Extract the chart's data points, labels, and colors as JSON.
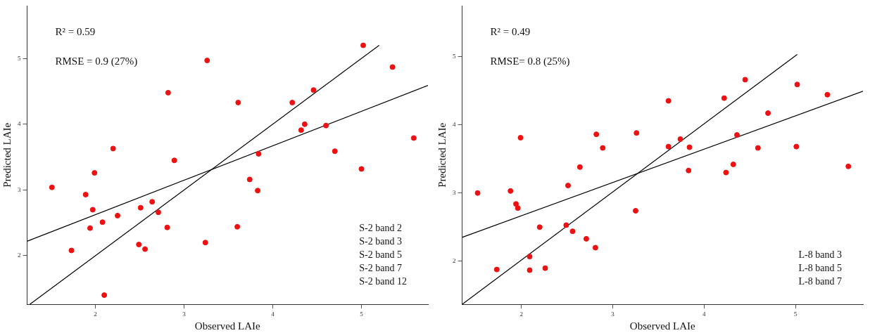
{
  "chart_data": [
    {
      "type": "scatter",
      "xlabel": "Observed LAIe",
      "ylabel": "Predicted LAIe",
      "xlim": [
        1.23,
        5.75
      ],
      "ylim": [
        1.26,
        5.8
      ],
      "xticks": [
        2,
        3,
        4,
        5
      ],
      "yticks": [
        2,
        3,
        4,
        5
      ],
      "grid": false,
      "legend": false,
      "annotations": [
        "R² = 0.59",
        "RMSE = 0.9 (27%)",
        "S-2 band 2",
        "S-2 band 3",
        "S-2 band 5",
        "S-2 band 7",
        "S-2 band 12"
      ],
      "series": [
        {
          "type": "scatter",
          "marker": "circle",
          "color": "#ee1111",
          "x": [
            1.51,
            1.73,
            1.89,
            1.94,
            1.97,
            1.99,
            2.08,
            2.1,
            2.2,
            2.25,
            2.49,
            2.51,
            2.56,
            2.64,
            2.71,
            2.81,
            2.82,
            2.89,
            3.24,
            3.26,
            3.6,
            3.61,
            3.74,
            3.83,
            3.84,
            4.22,
            4.32,
            4.36,
            4.46,
            4.6,
            4.7,
            5.0,
            5.02,
            5.35,
            5.59
          ],
          "values": [
            3.04,
            2.08,
            2.93,
            2.42,
            2.7,
            3.26,
            2.51,
            1.4,
            3.63,
            2.61,
            2.17,
            2.73,
            2.1,
            2.82,
            2.66,
            2.43,
            4.48,
            3.45,
            2.2,
            4.97,
            2.44,
            4.33,
            3.16,
            2.99,
            3.55,
            4.33,
            3.91,
            4.0,
            4.52,
            3.98,
            3.59,
            3.32,
            5.2,
            4.87,
            3.79
          ]
        },
        {
          "type": "line",
          "marker": "none",
          "color": "#000000",
          "x": [
            1.26,
            5.2
          ],
          "values": [
            1.26,
            5.2
          ]
        },
        {
          "type": "line",
          "marker": "none",
          "color": "#000000",
          "x": [
            1.23,
            5.75
          ],
          "values": [
            2.22,
            4.59
          ]
        }
      ]
    },
    {
      "type": "scatter",
      "xlabel": "Observed LAIe",
      "ylabel": "Predicted LAIe",
      "xlim": [
        1.35,
        5.74
      ],
      "ylim": [
        1.37,
        5.74
      ],
      "xticks": [
        2,
        3,
        4,
        5
      ],
      "yticks": [
        2,
        3,
        4,
        5
      ],
      "grid": false,
      "legend": false,
      "annotations": [
        "R² = 0.49",
        "RMSE= 0.8 (25%)",
        "L-8 band 3",
        "L-8 band 5",
        "L-8 band 7"
      ],
      "series": [
        {
          "type": "scatter",
          "marker": "circle",
          "color": "#ee1111",
          "x": [
            1.52,
            1.73,
            1.88,
            1.94,
            1.96,
            1.99,
            2.09,
            2.09,
            2.2,
            2.26,
            2.49,
            2.51,
            2.56,
            2.64,
            2.71,
            2.81,
            2.82,
            2.89,
            3.25,
            3.26,
            3.61,
            3.61,
            3.74,
            3.83,
            3.84,
            4.22,
            4.24,
            4.32,
            4.36,
            4.45,
            4.59,
            4.7,
            5.01,
            5.02,
            5.35,
            5.58
          ],
          "values": [
            3.0,
            1.88,
            3.03,
            2.84,
            2.78,
            3.81,
            2.07,
            1.87,
            2.5,
            1.9,
            2.53,
            3.11,
            2.44,
            3.38,
            2.33,
            2.2,
            3.86,
            3.66,
            2.74,
            3.88,
            4.35,
            3.68,
            3.79,
            3.33,
            3.67,
            4.39,
            3.3,
            3.42,
            3.85,
            4.66,
            3.66,
            4.17,
            3.68,
            4.59,
            4.44,
            3.39
          ]
        },
        {
          "type": "line",
          "marker": "none",
          "color": "#000000",
          "x": [
            1.35,
            5.02
          ],
          "values": [
            1.37,
            5.03
          ]
        },
        {
          "type": "line",
          "marker": "none",
          "color": "#000000",
          "x": [
            1.35,
            5.74
          ],
          "values": [
            2.35,
            4.49
          ]
        }
      ]
    }
  ]
}
